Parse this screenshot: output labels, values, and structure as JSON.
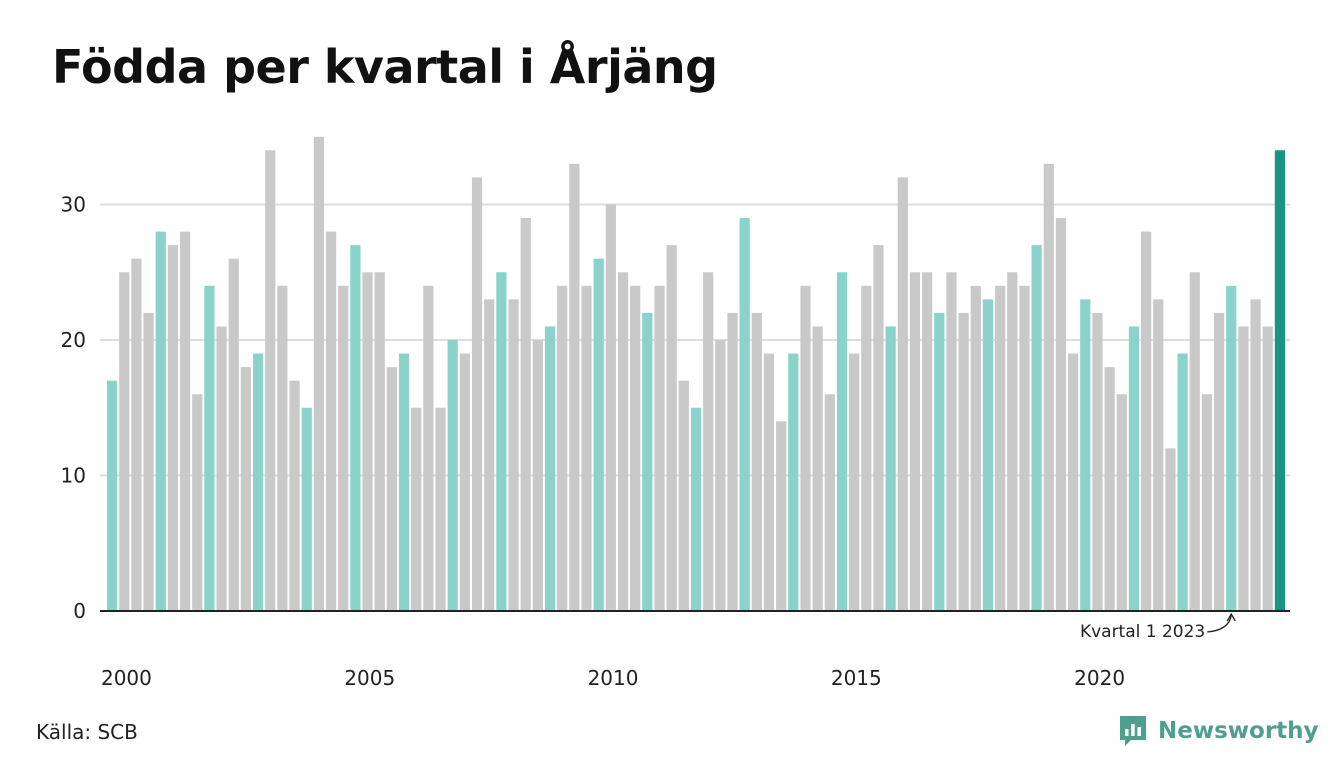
{
  "title": "Födda per kvartal i Årjäng",
  "source": "Källa: SCB",
  "logo": {
    "text": "Newsworthy",
    "icon": "newsworthy-logo-icon"
  },
  "colors": {
    "q1": "#8ad3cb",
    "other": "#c9c9c9",
    "highlight": "#1a9484",
    "grid": "#dddddd",
    "baseline": "#222222",
    "logo": "#4f9e8f"
  },
  "chart_data": {
    "type": "bar",
    "x_start_year": 2000,
    "periods_per_year": 4,
    "x_ticks": [
      "2000",
      "2005",
      "2010",
      "2015",
      "2020"
    ],
    "y_ticks": [
      "0",
      "10",
      "20",
      "30"
    ],
    "ylim": [
      0,
      36
    ],
    "grid": true,
    "highlight_last": true,
    "values": [
      17,
      25,
      26,
      22,
      28,
      27,
      28,
      16,
      24,
      21,
      26,
      18,
      19,
      34,
      24,
      17,
      15,
      35,
      28,
      24,
      27,
      25,
      25,
      18,
      19,
      15,
      24,
      15,
      20,
      19,
      32,
      23,
      25,
      23,
      29,
      20,
      21,
      24,
      33,
      24,
      26,
      30,
      25,
      24,
      22,
      24,
      27,
      17,
      15,
      25,
      20,
      22,
      29,
      22,
      19,
      14,
      19,
      24,
      21,
      16,
      25,
      19,
      24,
      27,
      21,
      32,
      25,
      25,
      22,
      25,
      22,
      24,
      23,
      24,
      25,
      24,
      27,
      33,
      29,
      19,
      23,
      22,
      18,
      16,
      21,
      28,
      23,
      12,
      19,
      25,
      16,
      22,
      24,
      21,
      23,
      21,
      34
    ],
    "annotation": {
      "text": "Kvartal 1 2023",
      "index": 92
    }
  }
}
